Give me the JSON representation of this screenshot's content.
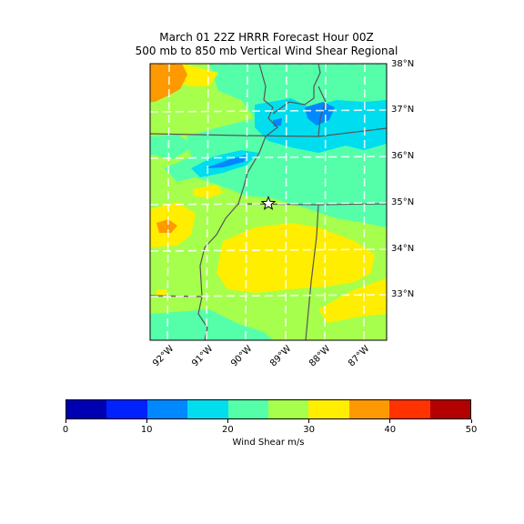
{
  "title_line1": "March 01 22Z HRRR Forecast Hour 00Z",
  "title_line2": "500 mb to 850 mb Vertical Wind Shear Regional",
  "lat_labels": [
    "38°N",
    "37°N",
    "36°N",
    "35°N",
    "34°N",
    "33°N"
  ],
  "lon_labels": [
    "92°W",
    "91°W",
    "90°W",
    "89°W",
    "88°W",
    "87°W"
  ],
  "colorbar": {
    "label": "Wind Shear m/s",
    "colors": [
      "#0000b3",
      "#0022ff",
      "#0088ff",
      "#00ddee",
      "#55ffaa",
      "#a6ff4d",
      "#ffee00",
      "#ff9900",
      "#ff3300",
      "#b30000"
    ],
    "ticks": [
      "0",
      "10",
      "20",
      "30",
      "40",
      "50"
    ]
  },
  "marker": "star"
}
